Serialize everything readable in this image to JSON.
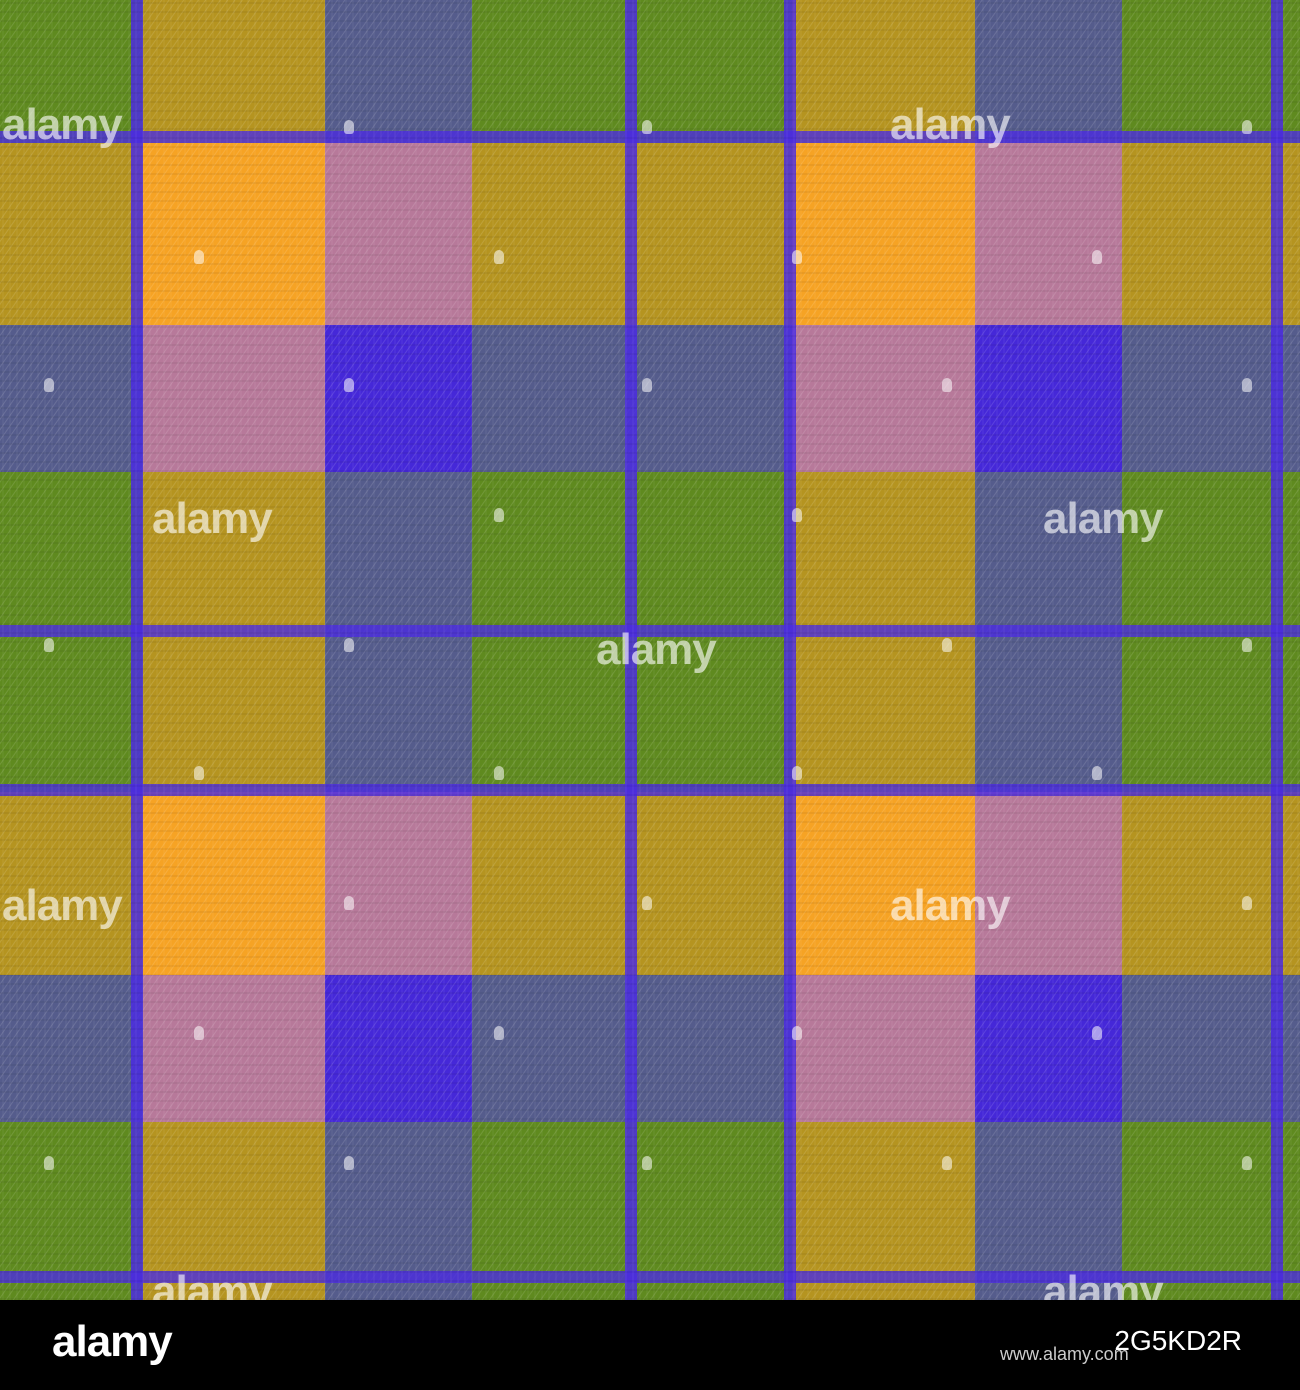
{
  "image": {
    "description": "Seamless woven plaid / gingham check fabric texture",
    "colors": {
      "olive_green": "#5f8a1f",
      "mustard": "#b59420",
      "orange": "#f6a324",
      "slate_blue": "#555c8c",
      "pink": "#b7799a",
      "violet": "#4528d8",
      "stripe_blue": "#4b2ce0"
    }
  },
  "watermark": {
    "text": "alamy"
  },
  "footer": {
    "brand": "alamy",
    "image_id": "2G5KD2R",
    "site": "www.alamy.com"
  }
}
